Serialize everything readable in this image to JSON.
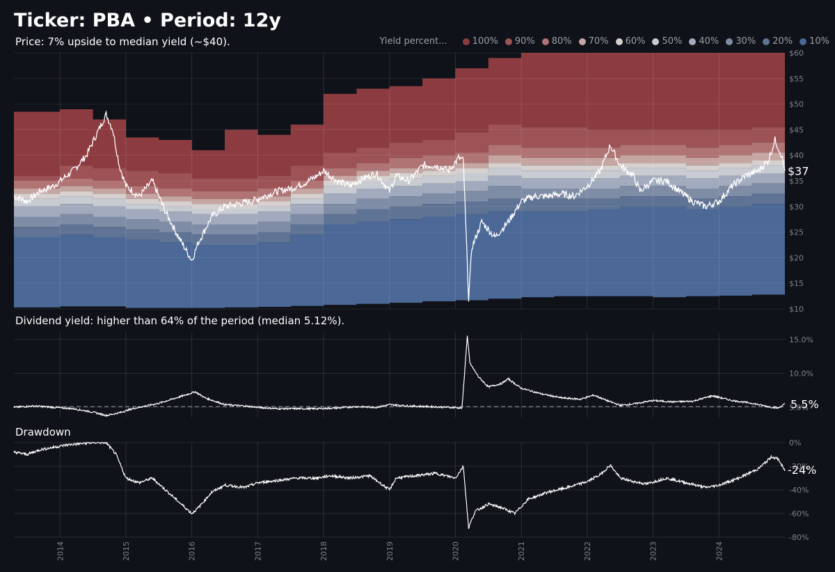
{
  "header": {
    "title": "Ticker: PBA • Period: 12y",
    "price_note": "Price: 7% upside to median yield (~$40).",
    "yield_note": "Dividend yield: higher than 64% of the period (median 5.12%).",
    "drawdown_label": "Drawdown"
  },
  "legend": {
    "title": "Yield percent...",
    "items": [
      {
        "label": "100%",
        "color": "#8c3c40"
      },
      {
        "label": "90%",
        "color": "#9d5256"
      },
      {
        "label": "80%",
        "color": "#b07474"
      },
      {
        "label": "70%",
        "color": "#c6a6a3"
      },
      {
        "label": "60%",
        "color": "#d6d1cf"
      },
      {
        "label": "50%",
        "color": "#c8cbd2"
      },
      {
        "label": "40%",
        "color": "#a2abbd"
      },
      {
        "label": "30%",
        "color": "#7f8ca6"
      },
      {
        "label": "20%",
        "color": "#5f7395"
      },
      {
        "label": "10%",
        "color": "#4b6896"
      }
    ]
  },
  "chart_data": [
    {
      "type": "area",
      "name": "price-yield-bands",
      "x_range": [
        2013.3,
        2025.0
      ],
      "ylim": [
        10,
        60
      ],
      "y_ticks": [
        "$10",
        "$15",
        "$20",
        "$25",
        "$30",
        "$35",
        "$40",
        "$45",
        "$50",
        "$55",
        "$60"
      ],
      "x_ticks": [
        "2014",
        "2015",
        "2016",
        "2017",
        "2018",
        "2019",
        "2020",
        "2021",
        "2022",
        "2023",
        "2024"
      ],
      "last_value_label": "$37",
      "price_series": {
        "x": [
          2013.3,
          2013.5,
          2013.7,
          2013.9,
          2014.0,
          2014.2,
          2014.4,
          2014.55,
          2014.7,
          2014.8,
          2014.9,
          2015.0,
          2015.2,
          2015.4,
          2015.6,
          2015.8,
          2016.0,
          2016.1,
          2016.3,
          2016.5,
          2016.7,
          2016.9,
          2017.1,
          2017.3,
          2017.5,
          2017.7,
          2017.9,
          2018.0,
          2018.2,
          2018.4,
          2018.6,
          2018.8,
          2019.0,
          2019.1,
          2019.3,
          2019.5,
          2019.7,
          2019.9,
          2020.05,
          2020.12,
          2020.2,
          2020.25,
          2020.4,
          2020.6,
          2020.8,
          2021.0,
          2021.2,
          2021.4,
          2021.6,
          2021.8,
          2022.0,
          2022.2,
          2022.35,
          2022.5,
          2022.7,
          2022.8,
          2023.0,
          2023.2,
          2023.4,
          2023.6,
          2023.8,
          2024.0,
          2024.2,
          2024.4,
          2024.6,
          2024.75,
          2024.85,
          2024.95,
          2025.0
        ],
        "values": [
          32,
          31,
          33,
          34,
          35,
          37,
          40,
          44,
          48,
          45,
          38,
          34,
          32,
          35,
          29,
          24,
          19.5,
          23,
          28,
          30,
          30.5,
          31,
          32,
          33,
          33.5,
          34.5,
          36,
          37,
          35,
          34,
          35.5,
          36.5,
          33,
          36,
          35,
          38,
          38,
          37,
          39.5,
          39,
          12,
          22,
          27,
          24,
          27,
          31,
          32,
          32,
          32.5,
          32,
          34,
          37,
          42,
          38,
          36,
          33,
          35,
          35,
          33,
          31,
          30,
          31,
          34,
          36,
          37,
          39,
          43,
          40,
          37
        ]
      },
      "bands": {
        "x": [
          2013.3,
          2014.0,
          2014.5,
          2015.0,
          2015.5,
          2016.0,
          2016.5,
          2017.0,
          2017.5,
          2018.0,
          2018.5,
          2019.0,
          2019.5,
          2020.0,
          2020.5,
          2021.0,
          2021.5,
          2022.0,
          2022.5,
          2023.0,
          2023.5,
          2024.0,
          2024.5,
          2025.0
        ],
        "p100": [
          48.5,
          49,
          47,
          43.5,
          43,
          41,
          45,
          44,
          46,
          52,
          53,
          53.5,
          55,
          57,
          59,
          60,
          60,
          60,
          60,
          60,
          60,
          60,
          60,
          60
        ],
        "p90": [
          36,
          38,
          37.5,
          37,
          36.5,
          35.5,
          35.5,
          36,
          38,
          40.5,
          41.5,
          42.5,
          43,
          44.5,
          46,
          45.5,
          45.5,
          45,
          45,
          45,
          45,
          45,
          45.5,
          46
        ],
        "p80": [
          35,
          35.5,
          35,
          34,
          33.5,
          33,
          33,
          33.5,
          35,
          37.5,
          38.5,
          39.5,
          40,
          40.5,
          42,
          41.5,
          41.5,
          41.5,
          42,
          42,
          41.5,
          42,
          42.5,
          43
        ],
        "p70": [
          33.5,
          34,
          33.5,
          32.5,
          32,
          31.5,
          31.5,
          32,
          33.5,
          36,
          37,
          37.5,
          38,
          38.5,
          40,
          39.5,
          39.5,
          39.5,
          40,
          40,
          39.5,
          40,
          40.5,
          41
        ],
        "p60": [
          32.5,
          33,
          32.5,
          31.5,
          31,
          30.5,
          30.5,
          31,
          32.5,
          35,
          36,
          36.5,
          37,
          37.5,
          38.5,
          38,
          38,
          38,
          38.5,
          38.5,
          38,
          38.5,
          39,
          39
        ],
        "p50": [
          31.5,
          32,
          31.5,
          30.5,
          30,
          29.5,
          29.5,
          30,
          31.5,
          34,
          35,
          35.5,
          36,
          36.5,
          37.5,
          37,
          37,
          37,
          37.5,
          37.5,
          37,
          37.5,
          38,
          38
        ],
        "p40": [
          30,
          30.5,
          30,
          29.5,
          29,
          28.5,
          28.5,
          29,
          30.5,
          32.5,
          33.5,
          34,
          34.5,
          35,
          36,
          35.5,
          35.5,
          35.5,
          36,
          36,
          35.5,
          36,
          36.5,
          36.5
        ],
        "p30": [
          28,
          28.5,
          28,
          27.5,
          27,
          26.5,
          26.5,
          27,
          28.5,
          30.5,
          31.5,
          32,
          32.5,
          33,
          34,
          33.5,
          33.5,
          33.5,
          34,
          34,
          33.5,
          34,
          34.5,
          35
        ],
        "p20": [
          26,
          26.5,
          26,
          25.5,
          25,
          24.5,
          24.5,
          25,
          26.5,
          28.5,
          29.5,
          30,
          30.5,
          31,
          31.5,
          31.5,
          31.5,
          31.5,
          32,
          32,
          31.5,
          32,
          32.5,
          33
        ],
        "p10": [
          24,
          24.5,
          24,
          23.5,
          23,
          22.5,
          22.5,
          23,
          24.5,
          26.5,
          27,
          27.5,
          28,
          28.5,
          29,
          29,
          29,
          29.5,
          30,
          30,
          29.5,
          30,
          30.5,
          30.5
        ],
        "p0": [
          10.3,
          10.5,
          10.5,
          10.2,
          10.2,
          10.2,
          10.3,
          10.4,
          10.6,
          10.8,
          11,
          11.2,
          11.5,
          11.7,
          12,
          12.3,
          12.5,
          12.5,
          12.5,
          12.3,
          12.5,
          12.6,
          12.8,
          13
        ]
      }
    },
    {
      "type": "line",
      "name": "dividend-yield",
      "ylim": [
        3.5,
        16
      ],
      "y_ticks": [
        "5.0%",
        "10.0%",
        "15.0%"
      ],
      "median_value": 5.12,
      "last_value_label": "5.5%",
      "x": [
        2013.3,
        2013.6,
        2013.9,
        2014.2,
        2014.5,
        2014.7,
        2014.9,
        2015.1,
        2015.3,
        2015.5,
        2015.7,
        2015.9,
        2016.05,
        2016.2,
        2016.5,
        2016.8,
        2017.0,
        2017.3,
        2017.6,
        2017.9,
        2018.2,
        2018.5,
        2018.8,
        2019.0,
        2019.3,
        2019.6,
        2019.9,
        2020.1,
        2020.18,
        2020.22,
        2020.35,
        2020.5,
        2020.7,
        2020.8,
        2021.0,
        2021.3,
        2021.6,
        2021.9,
        2022.1,
        2022.3,
        2022.5,
        2022.7,
        2023.0,
        2023.3,
        2023.6,
        2023.9,
        2024.2,
        2024.5,
        2024.75,
        2024.9,
        2025.0
      ],
      "values": [
        5.0,
        5.2,
        5.0,
        4.8,
        4.3,
        3.8,
        4.2,
        4.8,
        5.2,
        5.6,
        6.2,
        6.8,
        7.3,
        6.4,
        5.4,
        5.2,
        5.0,
        4.8,
        4.8,
        4.8,
        4.9,
        5.1,
        5.0,
        5.4,
        5.2,
        5.1,
        5.0,
        4.9,
        15.5,
        11.5,
        9.5,
        8.0,
        8.5,
        9.2,
        7.8,
        7.0,
        6.4,
        6.2,
        6.8,
        6.0,
        5.3,
        5.5,
        6.0,
        5.8,
        5.9,
        6.7,
        6.0,
        5.6,
        5.1,
        4.9,
        5.5
      ]
    },
    {
      "type": "line",
      "name": "drawdown",
      "ylim": [
        -80,
        0
      ],
      "y_ticks": [
        "0%",
        "-20%",
        "-40%",
        "-60%",
        "-80%"
      ],
      "last_value_label": "-24%",
      "x": [
        2013.3,
        2013.5,
        2013.7,
        2013.9,
        2014.1,
        2014.3,
        2014.5,
        2014.7,
        2014.85,
        2015.0,
        2015.2,
        2015.4,
        2015.6,
        2015.8,
        2016.0,
        2016.1,
        2016.3,
        2016.5,
        2016.8,
        2017.0,
        2017.3,
        2017.6,
        2017.9,
        2018.1,
        2018.4,
        2018.7,
        2019.0,
        2019.1,
        2019.4,
        2019.7,
        2020.0,
        2020.12,
        2020.2,
        2020.3,
        2020.5,
        2020.7,
        2020.9,
        2021.1,
        2021.4,
        2021.7,
        2022.0,
        2022.2,
        2022.35,
        2022.5,
        2022.7,
        2022.9,
        2023.2,
        2023.5,
        2023.8,
        2024.0,
        2024.3,
        2024.6,
        2024.8,
        2024.9,
        2025.0
      ],
      "values": [
        -8,
        -10,
        -6,
        -4,
        -2,
        -1,
        0,
        0,
        -10,
        -30,
        -34,
        -30,
        -40,
        -50,
        -60,
        -55,
        -42,
        -36,
        -38,
        -34,
        -32,
        -30,
        -30,
        -28,
        -30,
        -28,
        -40,
        -30,
        -28,
        -26,
        -30,
        -20,
        -72,
        -58,
        -52,
        -55,
        -60,
        -48,
        -42,
        -38,
        -33,
        -27,
        -19,
        -30,
        -33,
        -35,
        -30,
        -34,
        -38,
        -36,
        -30,
        -22,
        -12,
        -14,
        -24
      ]
    }
  ]
}
